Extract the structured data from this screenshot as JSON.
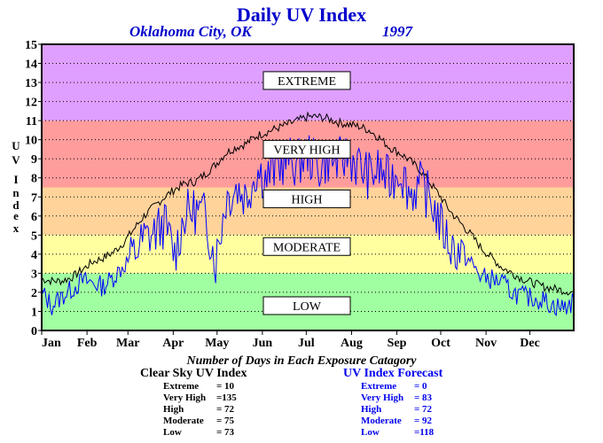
{
  "header": {
    "title": "Daily UV Index",
    "city": "Oklahoma City, OK",
    "year": "1997"
  },
  "chart_data": {
    "type": "line",
    "title": "Daily UV Index",
    "ylabel": "UV Index",
    "ylim": [
      0,
      15
    ],
    "yticks": [
      "0",
      "1",
      "2",
      "3",
      "4",
      "5",
      "6",
      "7",
      "8",
      "9",
      "10",
      "11",
      "12",
      "13",
      "14",
      "15"
    ],
    "months": [
      "Jan",
      "Feb",
      "Mar",
      "Apr",
      "May",
      "Jun",
      "Jul",
      "Aug",
      "Sep",
      "Oct",
      "Nov",
      "Dec"
    ],
    "grid": true,
    "bands": [
      {
        "label": "LOW",
        "from": 0,
        "to": 3,
        "color": "#a0ffa0"
      },
      {
        "label": "MODERATE",
        "from": 3,
        "to": 5,
        "color": "#ffffa0"
      },
      {
        "label": "HIGH",
        "from": 5,
        "to": 7.5,
        "color": "#ffd39a"
      },
      {
        "label": "VERY HIGH",
        "from": 7.5,
        "to": 11,
        "color": "#ff9c9c"
      },
      {
        "label": "EXTREME",
        "from": 11,
        "to": 15,
        "color": "#df9fff"
      }
    ],
    "band_label_positions": [
      {
        "label": "EXTREME",
        "y": 13.1
      },
      {
        "label": "VERY HIGH",
        "y": 9.5
      },
      {
        "label": "HIGH",
        "y": 6.9
      },
      {
        "label": "MODERATE",
        "y": 4.4
      },
      {
        "label": "LOW",
        "y": 1.3
      }
    ],
    "series": [
      {
        "name": "Clear Sky UV Index",
        "color": "#000000",
        "x_days": [
          1,
          8,
          15,
          22,
          29,
          36,
          43,
          50,
          57,
          64,
          71,
          78,
          85,
          92,
          99,
          106,
          113,
          120,
          127,
          134,
          141,
          148,
          155,
          162,
          169,
          176,
          183,
          190,
          197,
          204,
          211,
          218,
          225,
          232,
          239,
          246,
          253,
          260,
          267,
          274,
          281,
          288,
          295,
          302,
          309,
          316,
          323,
          330,
          337,
          344,
          351,
          358,
          365
        ],
        "values": [
          2.7,
          2.6,
          2.6,
          2.8,
          3.2,
          3.6,
          3.8,
          4.1,
          4.6,
          5.3,
          6.0,
          6.5,
          7.0,
          7.4,
          7.7,
          7.8,
          8.2,
          8.7,
          9.3,
          9.6,
          9.8,
          10.2,
          10.4,
          10.6,
          10.8,
          11.0,
          11.2,
          11.2,
          11.1,
          10.9,
          10.8,
          10.7,
          10.5,
          10.1,
          9.6,
          9.3,
          8.9,
          8.4,
          7.7,
          7.0,
          6.2,
          5.6,
          5.0,
          4.3,
          3.8,
          3.3,
          3.0,
          2.7,
          2.5,
          2.3,
          2.2,
          2.1,
          2.0
        ]
      },
      {
        "name": "UV Index Forecast",
        "color": "#0000ff",
        "x_days": [
          1,
          8,
          15,
          22,
          29,
          36,
          43,
          50,
          57,
          64,
          71,
          78,
          85,
          92,
          99,
          106,
          113,
          120,
          127,
          134,
          141,
          148,
          155,
          162,
          169,
          176,
          183,
          190,
          197,
          204,
          211,
          218,
          225,
          232,
          239,
          246,
          253,
          260,
          267,
          274,
          281,
          288,
          295,
          302,
          309,
          316,
          323,
          330,
          337,
          344,
          351,
          358,
          365
        ],
        "values": [
          2.0,
          1.3,
          1.8,
          2.2,
          2.6,
          2.5,
          2.3,
          2.8,
          3.4,
          4.0,
          4.8,
          5.1,
          5.6,
          4.0,
          6.1,
          6.3,
          6.0,
          3.6,
          6.9,
          7.5,
          7.0,
          8.4,
          8.0,
          8.6,
          9.0,
          8.7,
          9.3,
          8.5,
          9.0,
          8.8,
          9.2,
          8.6,
          8.1,
          8.4,
          7.8,
          8.5,
          7.2,
          7.6,
          6.9,
          5.5,
          4.4,
          4.1,
          3.5,
          2.8,
          2.7,
          2.5,
          2.0,
          1.8,
          1.7,
          1.6,
          1.3,
          1.2,
          1.5
        ]
      }
    ]
  },
  "stats": {
    "section_title": "Number of Days in Each Exposure Catagory",
    "clear_sky": {
      "heading": "Clear Sky UV Index",
      "rows": [
        {
          "label": "Extreme",
          "value": "=  10"
        },
        {
          "label": "Very High",
          "value": "=135"
        },
        {
          "label": "High",
          "value": "=  72"
        },
        {
          "label": "Moderate",
          "value": "=  75"
        },
        {
          "label": "Low",
          "value": "=  73"
        }
      ]
    },
    "forecast": {
      "heading": "UV Index Forecast",
      "rows": [
        {
          "label": "Extreme",
          "value": "=   0"
        },
        {
          "label": "Very High",
          "value": "=  83"
        },
        {
          "label": "High",
          "value": "=  72"
        },
        {
          "label": "Moderate",
          "value": "=  92"
        },
        {
          "label": "Low",
          "value": "=118"
        }
      ]
    }
  }
}
